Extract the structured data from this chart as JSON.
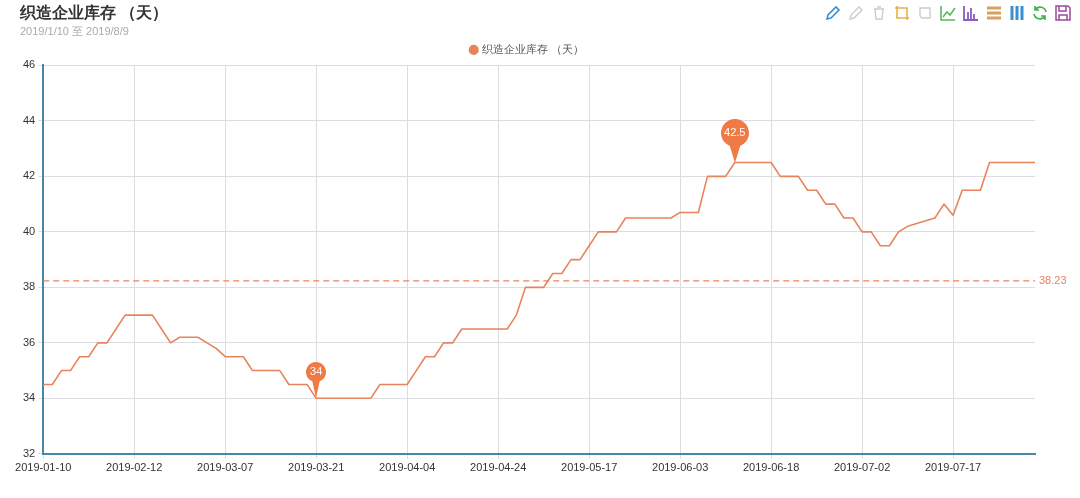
{
  "chart_data": {
    "type": "line",
    "title": "织造企业库存 （天）",
    "subtitle": "2019/1/10 至 2019/8/9",
    "categories": [
      "2019-01-10",
      null,
      null,
      null,
      null,
      null,
      null,
      null,
      null,
      null,
      "2019-02-12",
      null,
      null,
      null,
      null,
      null,
      null,
      null,
      null,
      null,
      "2019-03-07",
      null,
      null,
      null,
      null,
      null,
      null,
      null,
      null,
      null,
      "2019-03-21",
      null,
      null,
      null,
      null,
      null,
      null,
      null,
      null,
      null,
      "2019-04-04",
      null,
      null,
      null,
      null,
      null,
      null,
      null,
      null,
      null,
      "2019-04-24",
      null,
      null,
      null,
      null,
      null,
      null,
      null,
      null,
      null,
      "2019-05-17",
      null,
      null,
      null,
      null,
      null,
      null,
      null,
      null,
      null,
      "2019-06-03",
      null,
      null,
      null,
      null,
      null,
      null,
      null,
      null,
      null,
      "2019-06-18",
      null,
      null,
      null,
      null,
      null,
      null,
      null,
      null,
      null,
      "2019-07-02",
      null,
      null,
      null,
      null,
      null,
      null,
      null,
      null,
      null,
      "2019-07-17",
      null,
      null,
      null,
      null,
      null,
      null,
      null,
      null,
      null
    ],
    "series": [
      {
        "name": "织造企业库存 （天）",
        "color": "#e8845c",
        "values": [
          34.5,
          34.5,
          35,
          35,
          35.5,
          35.5,
          36,
          36,
          36.5,
          37,
          37,
          37,
          37,
          36.5,
          36,
          36.2,
          36.2,
          36.2,
          36,
          35.8,
          35.5,
          35.5,
          35.5,
          35,
          35,
          35,
          35,
          34.5,
          34.5,
          34.5,
          34,
          34,
          34,
          34,
          34,
          34,
          34,
          34.5,
          34.5,
          34.5,
          34.5,
          35,
          35.5,
          35.5,
          36,
          36,
          36.5,
          36.5,
          36.5,
          36.5,
          36.5,
          36.5,
          37,
          38,
          38,
          38,
          38.5,
          38.5,
          39,
          39,
          39.5,
          40,
          40,
          40,
          40.5,
          40.5,
          40.5,
          40.5,
          40.5,
          40.5,
          40.7,
          40.7,
          40.7,
          42,
          42,
          42,
          42.5,
          42.5,
          42.5,
          42.5,
          42.5,
          42,
          42,
          42,
          41.5,
          41.5,
          41,
          41,
          40.5,
          40.5,
          40,
          40,
          39.5,
          39.5,
          40,
          40.2,
          40.3,
          40.4,
          40.5,
          41,
          40.6,
          41.5,
          41.5,
          41.5,
          42.5,
          42.5,
          42.5,
          42.5,
          42.5,
          42.5
        ]
      }
    ],
    "ylim": [
      32,
      46
    ],
    "yticks": [
      32,
      34,
      36,
      38,
      40,
      42,
      44,
      46
    ],
    "grid": true,
    "legend": "top",
    "marker": "none",
    "line_style": "solid",
    "ref_lines": [
      {
        "axis": "y",
        "value": 38.23,
        "label": "38.23",
        "color": "#e8845c",
        "line_style": "dashed"
      }
    ],
    "annotations": [
      {
        "text": "34",
        "y": 34
      },
      {
        "text": "42.5",
        "y": 42.5
      }
    ]
  }
}
